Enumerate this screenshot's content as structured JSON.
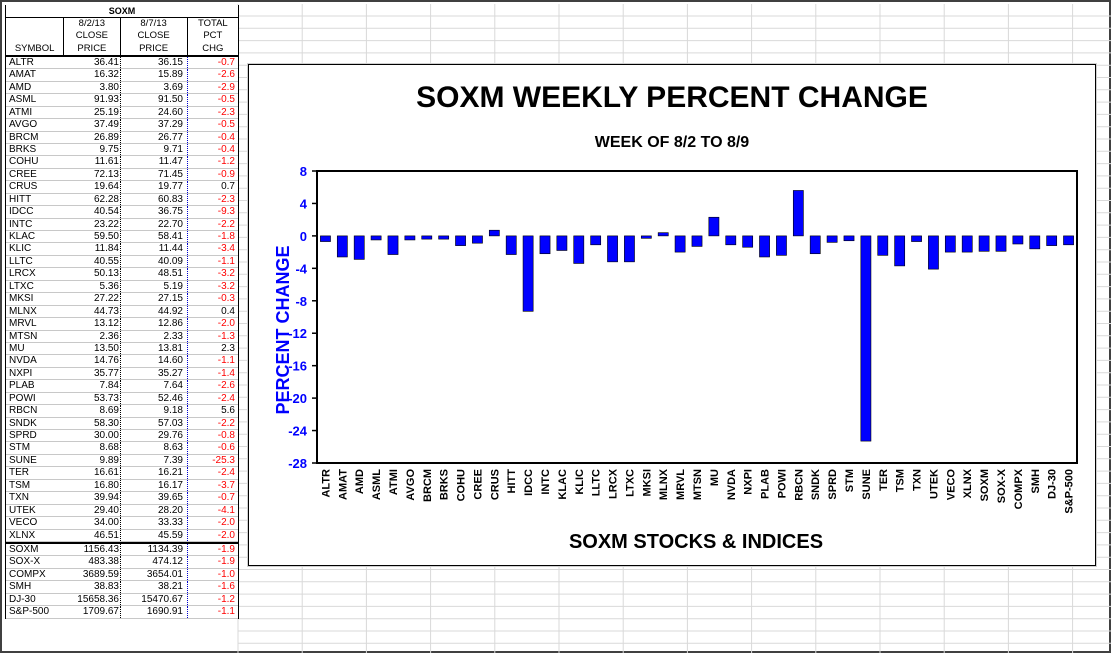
{
  "table": {
    "title": "SOXM",
    "headers": {
      "symbol": [
        "",
        "",
        "SYMBOL"
      ],
      "close1": [
        "8/2/13",
        "CLOSE",
        "PRICE"
      ],
      "close2": [
        "8/7/13",
        "CLOSE",
        "PRICE"
      ],
      "pct": [
        "TOTAL",
        "PCT",
        "CHG"
      ]
    },
    "rows": [
      {
        "symbol": "ALTR",
        "close1": "36.41",
        "close2": "36.15",
        "pct": "-0.7"
      },
      {
        "symbol": "AMAT",
        "close1": "16.32",
        "close2": "15.89",
        "pct": "-2.6"
      },
      {
        "symbol": "AMD",
        "close1": "3.80",
        "close2": "3.69",
        "pct": "-2.9"
      },
      {
        "symbol": "ASML",
        "close1": "91.93",
        "close2": "91.50",
        "pct": "-0.5"
      },
      {
        "symbol": "ATMI",
        "close1": "25.19",
        "close2": "24.60",
        "pct": "-2.3"
      },
      {
        "symbol": "AVGO",
        "close1": "37.49",
        "close2": "37.29",
        "pct": "-0.5"
      },
      {
        "symbol": "BRCM",
        "close1": "26.89",
        "close2": "26.77",
        "pct": "-0.4"
      },
      {
        "symbol": "BRKS",
        "close1": "9.75",
        "close2": "9.71",
        "pct": "-0.4"
      },
      {
        "symbol": "COHU",
        "close1": "11.61",
        "close2": "11.47",
        "pct": "-1.2"
      },
      {
        "symbol": "CREE",
        "close1": "72.13",
        "close2": "71.45",
        "pct": "-0.9"
      },
      {
        "symbol": "CRUS",
        "close1": "19.64",
        "close2": "19.77",
        "pct": "0.7"
      },
      {
        "symbol": "HITT",
        "close1": "62.28",
        "close2": "60.83",
        "pct": "-2.3"
      },
      {
        "symbol": "IDCC",
        "close1": "40.54",
        "close2": "36.75",
        "pct": "-9.3"
      },
      {
        "symbol": "INTC",
        "close1": "23.22",
        "close2": "22.70",
        "pct": "-2.2"
      },
      {
        "symbol": "KLAC",
        "close1": "59.50",
        "close2": "58.41",
        "pct": "-1.8"
      },
      {
        "symbol": "KLIC",
        "close1": "11.84",
        "close2": "11.44",
        "pct": "-3.4"
      },
      {
        "symbol": "LLTC",
        "close1": "40.55",
        "close2": "40.09",
        "pct": "-1.1"
      },
      {
        "symbol": "LRCX",
        "close1": "50.13",
        "close2": "48.51",
        "pct": "-3.2"
      },
      {
        "symbol": "LTXC",
        "close1": "5.36",
        "close2": "5.19",
        "pct": "-3.2"
      },
      {
        "symbol": "MKSI",
        "close1": "27.22",
        "close2": "27.15",
        "pct": "-0.3"
      },
      {
        "symbol": "MLNX",
        "close1": "44.73",
        "close2": "44.92",
        "pct": "0.4"
      },
      {
        "symbol": "MRVL",
        "close1": "13.12",
        "close2": "12.86",
        "pct": "-2.0"
      },
      {
        "symbol": "MTSN",
        "close1": "2.36",
        "close2": "2.33",
        "pct": "-1.3"
      },
      {
        "symbol": "MU",
        "close1": "13.50",
        "close2": "13.81",
        "pct": "2.3"
      },
      {
        "symbol": "NVDA",
        "close1": "14.76",
        "close2": "14.60",
        "pct": "-1.1"
      },
      {
        "symbol": "NXPI",
        "close1": "35.77",
        "close2": "35.27",
        "pct": "-1.4"
      },
      {
        "symbol": "PLAB",
        "close1": "7.84",
        "close2": "7.64",
        "pct": "-2.6"
      },
      {
        "symbol": "POWI",
        "close1": "53.73",
        "close2": "52.46",
        "pct": "-2.4"
      },
      {
        "symbol": "RBCN",
        "close1": "8.69",
        "close2": "9.18",
        "pct": "5.6"
      },
      {
        "symbol": "SNDK",
        "close1": "58.30",
        "close2": "57.03",
        "pct": "-2.2"
      },
      {
        "symbol": "SPRD",
        "close1": "30.00",
        "close2": "29.76",
        "pct": "-0.8"
      },
      {
        "symbol": "STM",
        "close1": "8.68",
        "close2": "8.63",
        "pct": "-0.6"
      },
      {
        "symbol": "SUNE",
        "close1": "9.89",
        "close2": "7.39",
        "pct": "-25.3"
      },
      {
        "symbol": "TER",
        "close1": "16.61",
        "close2": "16.21",
        "pct": "-2.4"
      },
      {
        "symbol": "TSM",
        "close1": "16.80",
        "close2": "16.17",
        "pct": "-3.7"
      },
      {
        "symbol": "TXN",
        "close1": "39.94",
        "close2": "39.65",
        "pct": "-0.7"
      },
      {
        "symbol": "UTEK",
        "close1": "29.40",
        "close2": "28.20",
        "pct": "-4.1"
      },
      {
        "symbol": "VECO",
        "close1": "34.00",
        "close2": "33.33",
        "pct": "-2.0"
      },
      {
        "symbol": "XLNX",
        "close1": "46.51",
        "close2": "45.59",
        "pct": "-2.0"
      }
    ],
    "index_rows": [
      {
        "symbol": "SOXM",
        "close1": "1156.43",
        "close2": "1134.39",
        "pct": "-1.9"
      },
      {
        "symbol": "SOX-X",
        "close1": "483.38",
        "close2": "474.12",
        "pct": "-1.9"
      },
      {
        "symbol": "COMPX",
        "close1": "3689.59",
        "close2": "3654.01",
        "pct": "-1.0"
      },
      {
        "symbol": "SMH",
        "close1": "38.83",
        "close2": "38.21",
        "pct": "-1.6"
      },
      {
        "symbol": "DJ-30",
        "close1": "15658.36",
        "close2": "15470.67",
        "pct": "-1.2"
      },
      {
        "symbol": "S&P-500",
        "close1": "1709.67",
        "close2": "1690.91",
        "pct": "-1.1"
      }
    ]
  },
  "chart_data": {
    "type": "bar",
    "title": "SOXM WEEKLY PERCENT CHANGE",
    "subtitle": "WEEK OF 8/2  TO 8/9",
    "xlabel": "SOXM STOCKS & INDICES",
    "ylabel": "PERCENT CHANGE",
    "ylim": [
      -28,
      8
    ],
    "yticks": [
      8,
      4,
      0,
      -4,
      -8,
      -12,
      -16,
      -20,
      -24,
      -28
    ],
    "grid": false,
    "bar_color": "#0000ff",
    "categories": [
      "ALTR",
      "AMAT",
      "AMD",
      "ASML",
      "ATMI",
      "AVGO",
      "BRCM",
      "BRKS",
      "COHU",
      "CREE",
      "CRUS",
      "HITT",
      "IDCC",
      "INTC",
      "KLAC",
      "KLIC",
      "LLTC",
      "LRCX",
      "LTXC",
      "MKSI",
      "MLNX",
      "MRVL",
      "MTSN",
      "MU",
      "NVDA",
      "NXPI",
      "PLAB",
      "POWI",
      "RBCN",
      "SNDK",
      "SPRD",
      "STM",
      "SUNE",
      "TER",
      "TSM",
      "TXN",
      "UTEK",
      "VECO",
      "XLNX",
      "SOXM",
      "SOX-X",
      "COMPX",
      "SMH",
      "DJ-30",
      "S&P-500"
    ],
    "values": [
      -0.7,
      -2.6,
      -2.9,
      -0.5,
      -2.3,
      -0.5,
      -0.4,
      -0.4,
      -1.2,
      -0.9,
      0.7,
      -2.3,
      -9.3,
      -2.2,
      -1.8,
      -3.4,
      -1.1,
      -3.2,
      -3.2,
      -0.3,
      0.4,
      -2.0,
      -1.3,
      2.3,
      -1.1,
      -1.4,
      -2.6,
      -2.4,
      5.6,
      -2.2,
      -0.8,
      -0.6,
      -25.3,
      -2.4,
      -3.7,
      -0.7,
      -4.1,
      -2.0,
      -2.0,
      -1.9,
      -1.9,
      -1.0,
      -1.6,
      -1.2,
      -1.1
    ]
  }
}
